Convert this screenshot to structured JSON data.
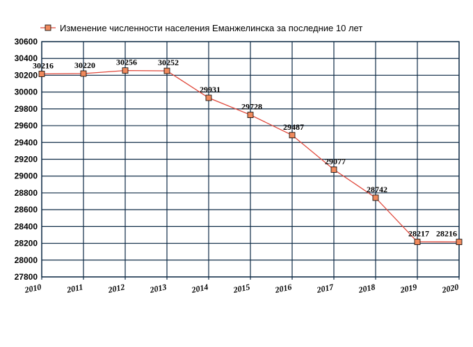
{
  "chart_data": {
    "type": "line",
    "title": "",
    "xlabel": "",
    "ylabel": "",
    "x": [
      "2010",
      "2011",
      "2012",
      "2013",
      "2014",
      "2015",
      "2016",
      "2017",
      "2018",
      "2019",
      "2020"
    ],
    "series": [
      {
        "name": "Изменение численности населения Еманжелинска за последние 10 лет",
        "values": [
          30216,
          30220,
          30256,
          30252,
          29931,
          29728,
          29487,
          29077,
          28742,
          28217,
          28216
        ],
        "color": "#e0483b",
        "marker_color": "#f08a5d"
      }
    ],
    "ylim": [
      27800,
      30600
    ],
    "ytick_step": 200,
    "grid": true,
    "legend_position": "top"
  }
}
